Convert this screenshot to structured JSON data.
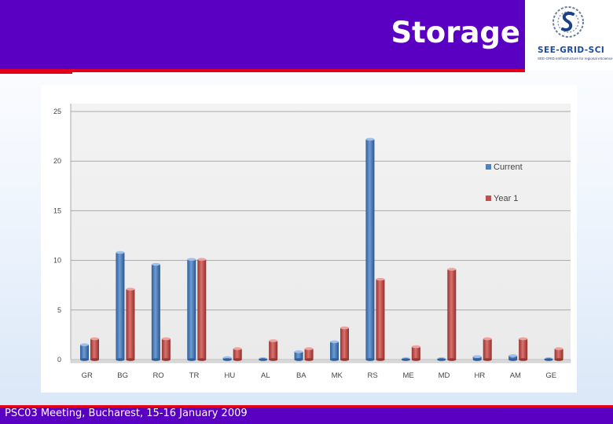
{
  "slide": {
    "title": "Storage",
    "footer": "PSC03 Meeting, Bucharest, 15-16 January 2009"
  },
  "logo": {
    "name": "SEE-GRID-SCI",
    "tagline": "SEE-GRID eInfrastructure for regional eScience"
  },
  "colors": {
    "title_bar": "#5a00c2",
    "accent_line": "#e3001b",
    "series_current": "#4f81bd",
    "series_year1": "#c0504d"
  },
  "chart_data": {
    "type": "bar",
    "categories": [
      "GR",
      "BG",
      "RO",
      "TR",
      "HU",
      "AL",
      "BA",
      "MK",
      "RS",
      "ME",
      "MD",
      "HR",
      "AM",
      "GE"
    ],
    "series": [
      {
        "name": "Current",
        "values": [
          1.5,
          10.8,
          9.6,
          10.1,
          0.2,
          0.1,
          0.8,
          1.8,
          22.2,
          0.1,
          0.1,
          0.3,
          0.4,
          0.1
        ]
      },
      {
        "name": "Year 1",
        "values": [
          2.1,
          7.1,
          2.1,
          10.1,
          1.1,
          1.9,
          1.1,
          3.2,
          8.1,
          1.3,
          9.1,
          2.1,
          2.1,
          1.1
        ]
      }
    ],
    "ylim": [
      0,
      25
    ],
    "yticks": [
      0,
      5,
      10,
      15,
      20,
      25
    ],
    "grid": true,
    "legend": "right",
    "xlabel": "",
    "ylabel": ""
  }
}
